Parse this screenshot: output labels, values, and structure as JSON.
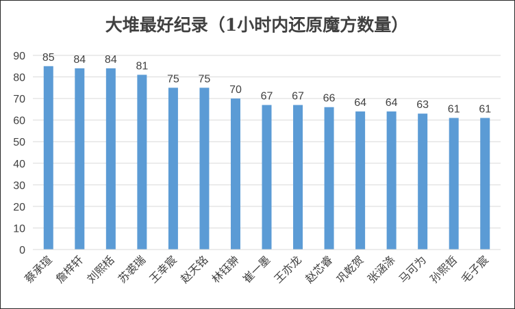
{
  "chart_data": {
    "type": "bar",
    "title": "大堆最好纪录（1小时内还原魔方数量）",
    "xlabel": "",
    "ylabel": "",
    "categories": [
      "蔡承瑄",
      "詹梓轩",
      "刘熙栝",
      "苏裘瑞",
      "王幸宸",
      "赵天铭",
      "林钰翀",
      "崔一墨",
      "王亦龙",
      "赵芯睿",
      "巩乾贺",
      "张涵涤",
      "马可为",
      "孙熙哲",
      "毛子宸"
    ],
    "series": [
      {
        "values": [
          85,
          84,
          84,
          81,
          75,
          75,
          70,
          67,
          67,
          66,
          64,
          64,
          63,
          61,
          61
        ]
      }
    ],
    "ylim": [
      0,
      90
    ],
    "yticks": [
      0,
      10,
      20,
      30,
      40,
      50,
      60,
      70,
      80,
      90
    ],
    "data_labels": true,
    "grid": true,
    "legend": "none",
    "colors": {
      "bar": "#5b9bd5",
      "grid": "#d9d9d9",
      "text": "#404040",
      "title": "#404040"
    }
  }
}
